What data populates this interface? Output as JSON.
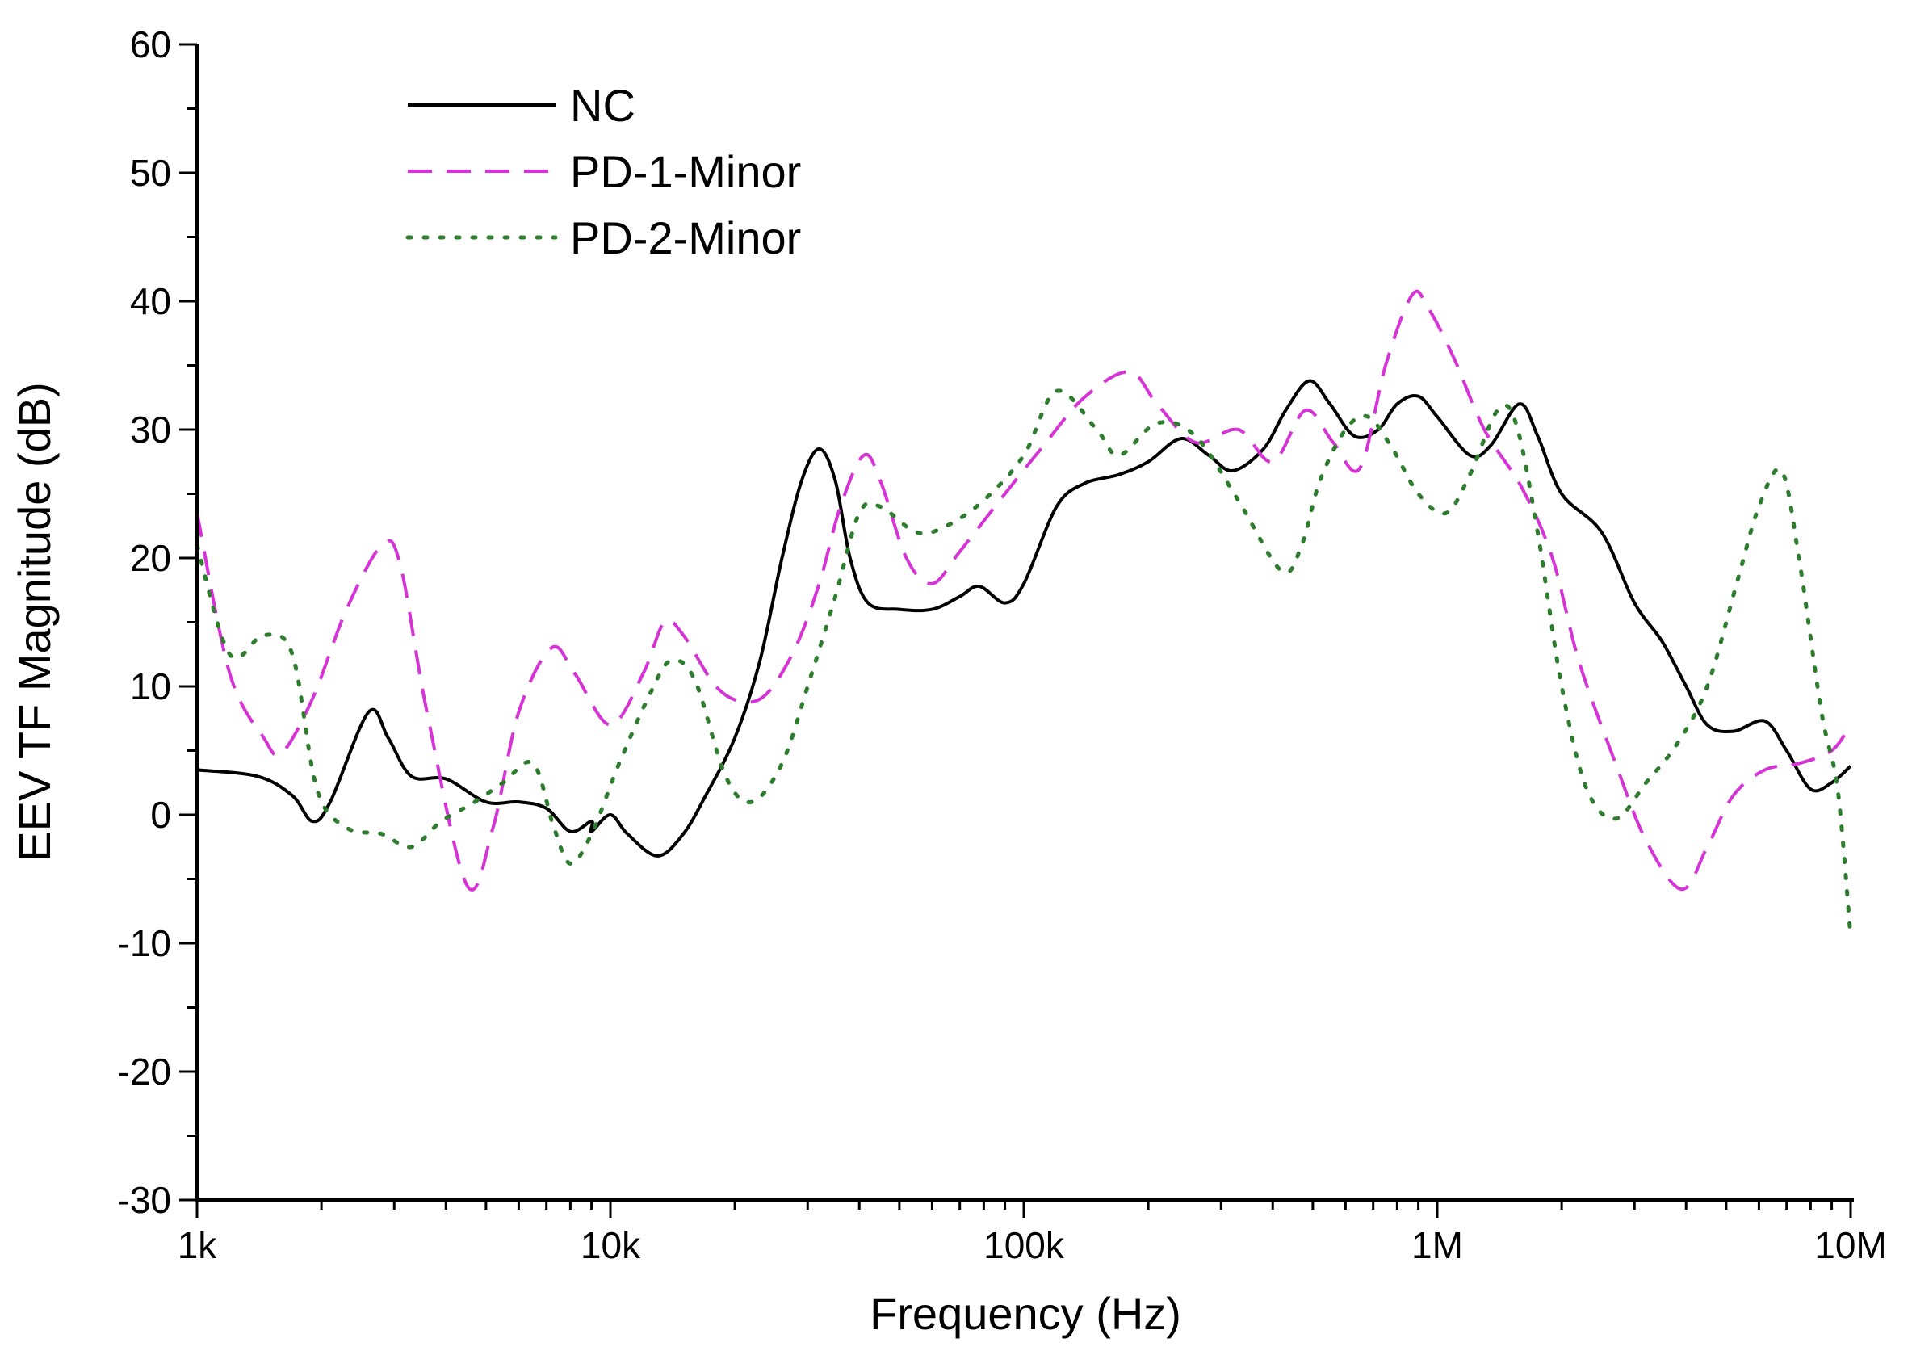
{
  "chart_data": {
    "type": "line",
    "title": "",
    "xlabel": "Frequency (Hz)",
    "ylabel": "EEV TF Magnitude (dB)",
    "xscale": "log",
    "xlim": [
      1000,
      10000000
    ],
    "ylim": [
      -30,
      60
    ],
    "x_ticks": [
      {
        "value": 1000,
        "label": "1k"
      },
      {
        "value": 10000,
        "label": "10k"
      },
      {
        "value": 100000,
        "label": "100k"
      },
      {
        "value": 1000000,
        "label": "1M"
      },
      {
        "value": 10000000,
        "label": "10M"
      }
    ],
    "y_ticks": [
      {
        "value": 60,
        "label": "60"
      },
      {
        "value": 50,
        "label": "50"
      },
      {
        "value": 40,
        "label": "40"
      },
      {
        "value": 30,
        "label": "30"
      },
      {
        "value": 20,
        "label": "20"
      },
      {
        "value": 10,
        "label": "10"
      },
      {
        "value": 0,
        "label": "0"
      },
      {
        "value": -10,
        "label": "-10"
      },
      {
        "value": -20,
        "label": "-20"
      },
      {
        "value": -30,
        "label": "-30"
      }
    ],
    "legend_position": "top-left",
    "series": [
      {
        "name": "NC",
        "color": "#000000",
        "style": "solid",
        "points": [
          [
            1000,
            3.5
          ],
          [
            1400,
            3.0
          ],
          [
            1700,
            1.5
          ],
          [
            1900,
            -0.5
          ],
          [
            2100,
            1.0
          ],
          [
            2600,
            8.0
          ],
          [
            2900,
            6.0
          ],
          [
            3300,
            3.0
          ],
          [
            4000,
            2.8
          ],
          [
            5000,
            1.0
          ],
          [
            6000,
            1.0
          ],
          [
            7000,
            0.5
          ],
          [
            8000,
            -1.3
          ],
          [
            9000,
            -0.5
          ],
          [
            10000,
            0.0
          ],
          [
            11000,
            -1.5
          ],
          [
            13000,
            -3.2
          ],
          [
            15000,
            -1.5
          ],
          [
            17000,
            1.5
          ],
          [
            20000,
            6.0
          ],
          [
            23000,
            12.0
          ],
          [
            26000,
            20.0
          ],
          [
            29000,
            26.0
          ],
          [
            32000,
            28.5
          ],
          [
            35000,
            26.0
          ],
          [
            38000,
            20.0
          ],
          [
            42000,
            16.5
          ],
          [
            50000,
            16.0
          ],
          [
            60000,
            16.0
          ],
          [
            70000,
            17.0
          ],
          [
            78000,
            17.8
          ],
          [
            90000,
            16.5
          ],
          [
            100000,
            18.0
          ],
          [
            120000,
            24.0
          ],
          [
            140000,
            25.8
          ],
          [
            170000,
            26.5
          ],
          [
            200000,
            27.5
          ],
          [
            240000,
            29.3
          ],
          [
            280000,
            28.0
          ],
          [
            320000,
            26.8
          ],
          [
            380000,
            28.5
          ],
          [
            430000,
            31.5
          ],
          [
            490000,
            33.8
          ],
          [
            550000,
            32.0
          ],
          [
            630000,
            29.5
          ],
          [
            720000,
            30.0
          ],
          [
            800000,
            32.0
          ],
          [
            900000,
            32.6
          ],
          [
            1000000,
            31.0
          ],
          [
            1200000,
            28.0
          ],
          [
            1350000,
            28.8
          ],
          [
            1580000,
            32.0
          ],
          [
            1750000,
            29.5
          ],
          [
            2000000,
            25.0
          ],
          [
            2500000,
            22.0
          ],
          [
            3000000,
            16.5
          ],
          [
            3500000,
            13.5
          ],
          [
            4000000,
            10.0
          ],
          [
            4500000,
            7.0
          ],
          [
            5200000,
            6.5
          ],
          [
            6200000,
            7.3
          ],
          [
            7000000,
            5.0
          ],
          [
            8000000,
            2.0
          ],
          [
            9000,
            -1.3
          ],
          [
            9000000,
            2.5
          ],
          [
            10000000,
            3.8
          ]
        ]
      },
      {
        "name": "PD-1-Minor",
        "color": "#d633d6",
        "style": "dashed",
        "points": [
          [
            1000,
            23.5
          ],
          [
            1200,
            11.0
          ],
          [
            1450,
            6.0
          ],
          [
            1600,
            4.8
          ],
          [
            1900,
            9.0
          ],
          [
            2300,
            16.0
          ],
          [
            2800,
            21.0
          ],
          [
            3100,
            19.5
          ],
          [
            3600,
            8.0
          ],
          [
            4500,
            -5.5
          ],
          [
            5200,
            -1.0
          ],
          [
            6000,
            8.0
          ],
          [
            7200,
            13.0
          ],
          [
            8200,
            11.0
          ],
          [
            10000,
            7.0
          ],
          [
            12000,
            11.0
          ],
          [
            13500,
            15.0
          ],
          [
            15000,
            14.0
          ],
          [
            18000,
            10.0
          ],
          [
            21000,
            8.8
          ],
          [
            24000,
            9.5
          ],
          [
            28000,
            13.0
          ],
          [
            32000,
            18.0
          ],
          [
            36000,
            24.0
          ],
          [
            41000,
            28.0
          ],
          [
            45000,
            26.0
          ],
          [
            52000,
            20.0
          ],
          [
            60000,
            18.0
          ],
          [
            70000,
            20.5
          ],
          [
            90000,
            25.0
          ],
          [
            110000,
            28.5
          ],
          [
            140000,
            32.5
          ],
          [
            180000,
            34.5
          ],
          [
            210000,
            32.0
          ],
          [
            260000,
            29.0
          ],
          [
            330000,
            30.0
          ],
          [
            400000,
            27.5
          ],
          [
            480000,
            31.5
          ],
          [
            560000,
            29.0
          ],
          [
            650000,
            27.0
          ],
          [
            750000,
            35.0
          ],
          [
            870000,
            40.5
          ],
          [
            950000,
            39.5
          ],
          [
            1100000,
            35.5
          ],
          [
            1300000,
            30.0
          ],
          [
            1600000,
            25.5
          ],
          [
            1900000,
            20.0
          ],
          [
            2200000,
            12.0
          ],
          [
            2700000,
            4.0
          ],
          [
            3200000,
            -2.0
          ],
          [
            3900000,
            -5.8
          ],
          [
            4500000,
            -2.5
          ],
          [
            5200000,
            1.5
          ],
          [
            6200000,
            3.5
          ],
          [
            7500000,
            4.0
          ],
          [
            9000000,
            5.0
          ],
          [
            10000000,
            7.0
          ]
        ]
      },
      {
        "name": "PD-2-Minor",
        "color": "#2e7d2e",
        "style": "dotted",
        "points": [
          [
            1000,
            21.0
          ],
          [
            1200,
            12.5
          ],
          [
            1450,
            14.0
          ],
          [
            1700,
            12.5
          ],
          [
            1950,
            2.0
          ],
          [
            2300,
            -1.0
          ],
          [
            2800,
            -1.5
          ],
          [
            3300,
            -2.5
          ],
          [
            3900,
            -0.5
          ],
          [
            4700,
            1.0
          ],
          [
            5500,
            2.5
          ],
          [
            6500,
            4.0
          ],
          [
            7300,
            -1.0
          ],
          [
            8000,
            -3.8
          ],
          [
            9000,
            -1.5
          ],
          [
            10500,
            4.0
          ],
          [
            12500,
            9.5
          ],
          [
            14000,
            12.0
          ],
          [
            16000,
            10.5
          ],
          [
            19000,
            3.0
          ],
          [
            22000,
            1.0
          ],
          [
            26000,
            4.0
          ],
          [
            30000,
            10.0
          ],
          [
            35000,
            17.0
          ],
          [
            40000,
            23.5
          ],
          [
            45000,
            24.0
          ],
          [
            55000,
            22.0
          ],
          [
            65000,
            22.5
          ],
          [
            80000,
            24.5
          ],
          [
            100000,
            28.0
          ],
          [
            120000,
            33.0
          ],
          [
            150000,
            30.0
          ],
          [
            170000,
            28.0
          ],
          [
            210000,
            30.5
          ],
          [
            260000,
            29.5
          ],
          [
            330000,
            24.5
          ],
          [
            420000,
            19.0
          ],
          [
            470000,
            21.0
          ],
          [
            520000,
            26.0
          ],
          [
            600000,
            30.0
          ],
          [
            680000,
            31.0
          ],
          [
            780000,
            28.5
          ],
          [
            900000,
            25.0
          ],
          [
            1050000,
            23.5
          ],
          [
            1200000,
            26.5
          ],
          [
            1400000,
            31.5
          ],
          [
            1550000,
            30.5
          ],
          [
            1750000,
            22.0
          ],
          [
            2000000,
            10.0
          ],
          [
            2300000,
            2.0
          ],
          [
            2700000,
            -0.3
          ],
          [
            3200000,
            2.5
          ],
          [
            3800000,
            5.5
          ],
          [
            4500000,
            10.0
          ],
          [
            5300000,
            18.0
          ],
          [
            6000000,
            24.0
          ],
          [
            6800000,
            26.8
          ],
          [
            7500000,
            20.0
          ],
          [
            8500000,
            8.0
          ],
          [
            9300000,
            2.0
          ],
          [
            10000000,
            -9.5
          ]
        ]
      }
    ]
  }
}
